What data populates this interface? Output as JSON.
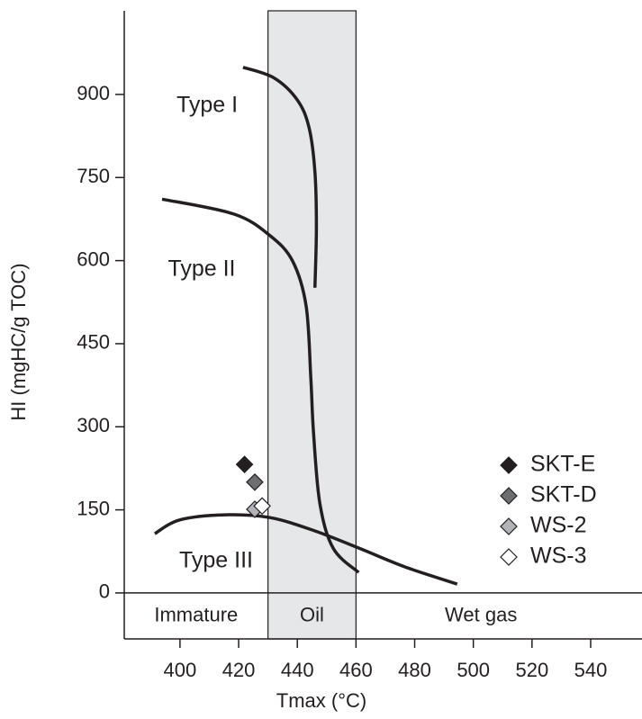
{
  "chart_data": {
    "type": "scatter",
    "x_label": "Tmax (°C)",
    "y_label": "HI (mgHC/g TOC)",
    "xlim": [
      381,
      557.5
    ],
    "ylim": [
      -83,
      1051
    ],
    "xticks": [
      400,
      420,
      440,
      460,
      480,
      500,
      520,
      540
    ],
    "yticks": [
      0,
      150,
      300,
      450,
      600,
      750,
      900
    ],
    "legend": "right",
    "zones": [
      {
        "label": "Immature"
      },
      {
        "label": "Oil",
        "xlim": [
          430,
          460
        ],
        "color": "#e6e7e8"
      },
      {
        "label": "Wet gas"
      }
    ],
    "lines": [
      {
        "name": "Type I",
        "x": [
          421.5,
          432,
          440,
          444,
          446,
          446.5,
          446
        ],
        "y": [
          949,
          930,
          890,
          840,
          760,
          660,
          551
        ]
      },
      {
        "name": "Type II",
        "x": [
          393.9,
          418.4,
          430.7,
          438.4,
          443,
          444.6,
          445.5,
          447.7,
          452.3,
          460.9
        ],
        "y": [
          711,
          684,
          645,
          599,
          518,
          388,
          291,
          161,
          80,
          37
        ]
      },
      {
        "name": "Type III",
        "x": [
          391.4,
          400,
          415.4,
          430.7,
          446,
          461.4,
          476.7,
          494.5
        ],
        "y": [
          107,
          132,
          141,
          136,
          112,
          80,
          47,
          16
        ]
      }
    ],
    "series": [
      {
        "name": "SKT-E",
        "color": "#231f20",
        "x": [
          422
        ],
        "values": [
          232
        ]
      },
      {
        "name": "SKT-D",
        "color": "#6d6e70",
        "x": [
          425.5
        ],
        "values": [
          200
        ]
      },
      {
        "name": "WS-2",
        "color": "#b1b3b6",
        "x": [
          425.5
        ],
        "values": [
          151
        ]
      },
      {
        "name": "WS-3",
        "color": "#ffffff",
        "x": [
          428
        ],
        "values": [
          157
        ]
      }
    ]
  }
}
